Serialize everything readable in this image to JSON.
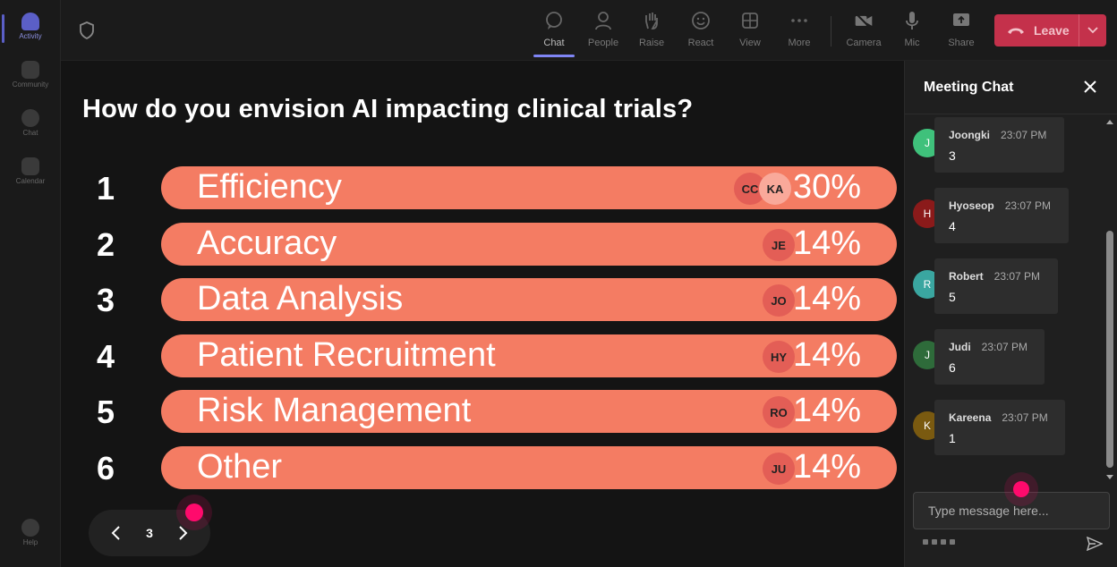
{
  "rail": {
    "items": [
      {
        "label": "Activity"
      },
      {
        "label": "Community"
      },
      {
        "label": "Chat"
      },
      {
        "label": "Calendar"
      }
    ],
    "help": "Help"
  },
  "toolbar": {
    "chat": "Chat",
    "people": "People",
    "raise": "Raise",
    "react": "React",
    "view": "View",
    "more": "More",
    "camera": "Camera",
    "mic": "Mic",
    "share": "Share",
    "leave": "Leave"
  },
  "poll": {
    "question": "How do you envision AI impacting clinical trials?",
    "options": [
      {
        "num": "1",
        "label": "Efficiency",
        "pct": "30%",
        "avatars": [
          "CC",
          "KA"
        ],
        "value": 30
      },
      {
        "num": "2",
        "label": "Accuracy",
        "pct": "14%",
        "avatars": [
          "JE"
        ],
        "value": 14
      },
      {
        "num": "3",
        "label": "Data Analysis",
        "pct": "14%",
        "avatars": [
          "JO"
        ],
        "value": 14
      },
      {
        "num": "4",
        "label": "Patient Recruitment",
        "pct": "14%",
        "avatars": [
          "HY"
        ],
        "value": 14
      },
      {
        "num": "5",
        "label": "Risk Management",
        "pct": "14%",
        "avatars": [
          "RO"
        ],
        "value": 14
      },
      {
        "num": "6",
        "label": "Other",
        "pct": "14%",
        "avatars": [
          "JU"
        ],
        "value": 14
      }
    ],
    "accent": "#f47c63"
  },
  "pager": {
    "page": "3"
  },
  "chat": {
    "title": "Meeting Chat",
    "placeholder": "Type message here...",
    "messages": [
      {
        "initial": "J",
        "name": "Joongki",
        "time": "23:07 PM",
        "text": "3",
        "color": "#3fc17b"
      },
      {
        "initial": "H",
        "name": "Hyoseop",
        "time": "23:07 PM",
        "text": "4",
        "color": "#8b1a1a"
      },
      {
        "initial": "R",
        "name": "Robert",
        "time": "23:07 PM",
        "text": "5",
        "color": "#3aa6a0"
      },
      {
        "initial": "J",
        "name": "Judi",
        "time": "23:07 PM",
        "text": "6",
        "color": "#2e6b3a"
      },
      {
        "initial": "K",
        "name": "Kareena",
        "time": "23:07 PM",
        "text": "1",
        "color": "#7a5a10"
      }
    ]
  },
  "colors": {
    "leave": "#c4314b",
    "cursor": "#ff0a6c",
    "active": "#7f85f5"
  }
}
